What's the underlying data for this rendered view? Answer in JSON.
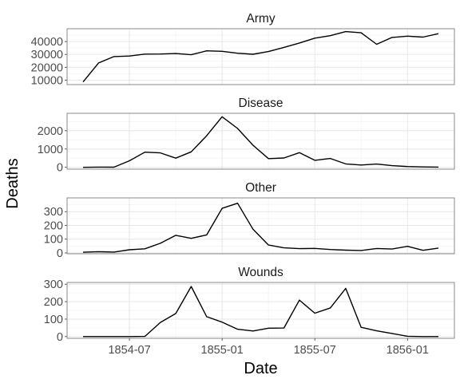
{
  "chart_data": {
    "type": "line",
    "xlabel": "Date",
    "ylabel": "Deaths",
    "x": [
      "1854-04",
      "1854-05",
      "1854-06",
      "1854-07",
      "1854-08",
      "1854-09",
      "1854-10",
      "1854-11",
      "1854-12",
      "1855-01",
      "1855-02",
      "1855-03",
      "1855-04",
      "1855-05",
      "1855-06",
      "1855-07",
      "1855-08",
      "1855-09",
      "1855-10",
      "1855-11",
      "1855-12",
      "1856-01",
      "1856-02",
      "1856-03"
    ],
    "x_ticks": [
      "1854-07",
      "1855-01",
      "1855-07",
      "1856-01"
    ],
    "x_tick_values": [
      "1854-07",
      "1855-01",
      "1855-07",
      "1856-01"
    ],
    "grid": true,
    "panels": [
      {
        "title": "Army",
        "ylim": [
          6500,
          50000
        ],
        "yticks": [
          10000,
          20000,
          30000,
          40000
        ],
        "values": [
          8571,
          23333,
          28333,
          28722,
          30246,
          30290,
          30643,
          29736,
          32779,
          32393,
          30919,
          30107,
          32252,
          35473,
          38863,
          42647,
          44614,
          47751,
          46852,
          37853,
          43217,
          44212,
          43485,
          46140
        ]
      },
      {
        "title": "Disease",
        "ylim": [
          -100,
          2950
        ],
        "yticks": [
          0,
          1000,
          2000
        ],
        "values": [
          1,
          12,
          11,
          359,
          828,
          788,
          503,
          844,
          1725,
          2761,
          2120,
          1205,
          477,
          508,
          802,
          382,
          483,
          189,
          128,
          178,
          91,
          42,
          24,
          15
        ]
      },
      {
        "title": "Other",
        "ylim": [
          -6,
          400
        ],
        "yticks": [
          0,
          100,
          200,
          300
        ],
        "values": [
          5,
          9,
          6,
          23,
          30,
          70,
          128,
          106,
          131,
          324,
          361,
          172,
          57,
          37,
          31,
          33,
          25,
          20,
          18,
          32,
          28,
          48,
          19,
          35
        ]
      },
      {
        "title": "Wounds",
        "ylim": [
          -10,
          310
        ],
        "yticks": [
          0,
          100,
          200,
          300
        ],
        "values": [
          0,
          0,
          0,
          0,
          1,
          81,
          132,
          287,
          114,
          83,
          42,
          32,
          48,
          49,
          209,
          134,
          164,
          276,
          53,
          33,
          18,
          2,
          0,
          0
        ]
      }
    ]
  },
  "colors": {
    "line": "#000000",
    "panel_border": "#8a8a8a",
    "grid_major": "#e6e6e6",
    "grid_minor": "#f3f3f3",
    "tick_text": "#4d4d4d",
    "strip_text": "#1a1a1a",
    "axis_title": "#000000"
  }
}
